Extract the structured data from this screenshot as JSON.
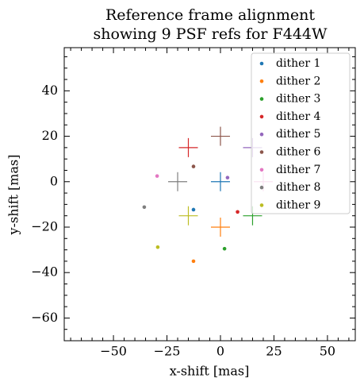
{
  "chart_data": {
    "type": "scatter",
    "title": [
      "Reference frame alignment",
      "showing 9 PSF refs for F444W"
    ],
    "x_label": "x-shift [mas]",
    "y_label": "y-shift [mas]",
    "xlim": [
      -73,
      63
    ],
    "ylim": [
      -70,
      59
    ],
    "xticks": [
      {
        "value": -50,
        "label": "−50"
      },
      {
        "value": -25,
        "label": "−25"
      },
      0,
      25,
      50
    ],
    "yticks": [
      {
        "value": -60,
        "label": "−60"
      },
      {
        "value": -40,
        "label": "−40"
      },
      {
        "value": -20,
        "label": "−20"
      },
      0,
      20,
      40
    ],
    "xminorticks": [
      -70,
      -65,
      -60,
      -55,
      -45,
      -40,
      -35,
      -30,
      -20,
      -15,
      -10,
      -5,
      5,
      10,
      15,
      20,
      30,
      35,
      40,
      45,
      55,
      60
    ],
    "yminorticks": [
      -70,
      -65,
      -55,
      -50,
      -45,
      -35,
      -30,
      -25,
      -15,
      -10,
      -5,
      5,
      10,
      15,
      25,
      30,
      35,
      45,
      50,
      55
    ],
    "legend": "upper right",
    "series": [
      {
        "name": "dither 1",
        "color": "#1f77b4",
        "x": [
          -12.6
        ],
        "y": [
          -12.3
        ],
        "ref_x": [
          0
        ],
        "ref_y": [
          0
        ]
      },
      {
        "name": "dither 2",
        "color": "#ff7f0e",
        "x": [
          -12.6
        ],
        "y": [
          -35
        ],
        "ref_x": [
          0
        ],
        "ref_y": [
          -20
        ]
      },
      {
        "name": "dither 3",
        "color": "#2ca02c",
        "x": [
          1.9
        ],
        "y": [
          -29.5
        ],
        "ref_x": [
          15
        ],
        "ref_y": [
          -15
        ]
      },
      {
        "name": "dither 4",
        "color": "#d62728",
        "x": [
          8
        ],
        "y": [
          -13.3
        ],
        "ref_x": [
          -15
        ],
        "ref_y": [
          15
        ]
      },
      {
        "name": "dither 5",
        "color": "#9467bd",
        "x": [
          3.3
        ],
        "y": [
          1.8
        ],
        "ref_x": [
          15
        ],
        "ref_y": [
          15
        ]
      },
      {
        "name": "dither 6",
        "color": "#8c564b",
        "x": [
          -12.6
        ],
        "y": [
          6.7
        ],
        "ref_x": [
          0
        ],
        "ref_y": [
          20
        ]
      },
      {
        "name": "dither 7",
        "color": "#e377c2",
        "x": [
          -29.6
        ],
        "y": [
          2.5
        ],
        "ref_x": [
          20
        ],
        "ref_y": [
          0
        ]
      },
      {
        "name": "dither 8",
        "color": "#7f7f7f",
        "x": [
          -35.6
        ],
        "y": [
          -11.2
        ],
        "ref_x": [
          -20
        ],
        "ref_y": [
          0
        ]
      },
      {
        "name": "dither 9",
        "color": "#bcbd22",
        "x": [
          -29.3
        ],
        "y": [
          -28.8
        ],
        "ref_x": [
          -15
        ],
        "ref_y": [
          -15
        ]
      }
    ]
  }
}
